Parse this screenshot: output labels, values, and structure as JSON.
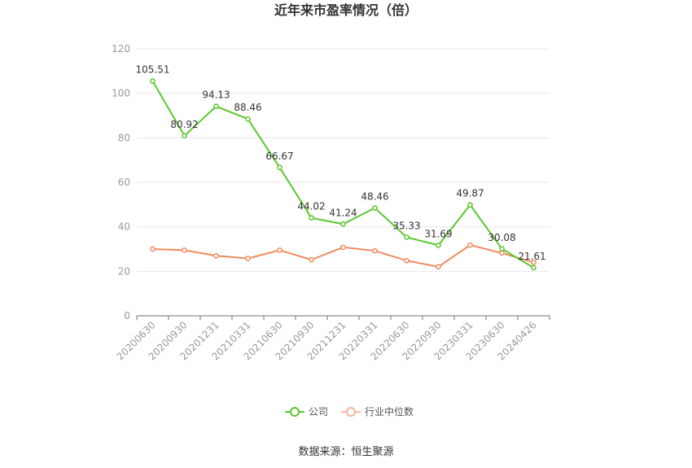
{
  "chart_data": {
    "type": "line",
    "title": "近年来市盈率情况（倍）",
    "categories": [
      "20200630",
      "20200930",
      "20201231",
      "20210331",
      "20210630",
      "20210930",
      "20211231",
      "20220331",
      "20220630",
      "20220930",
      "20230331",
      "20230630",
      "20240426"
    ],
    "ylim": [
      0,
      120
    ],
    "yticks": [
      0,
      20,
      40,
      60,
      80,
      100,
      120
    ],
    "grid": true,
    "legend_position": "bottom",
    "series": [
      {
        "name": "公司",
        "color": "#5ac72e",
        "show_labels": true,
        "values": [
          105.51,
          80.92,
          94.13,
          88.46,
          66.67,
          44.02,
          41.24,
          48.46,
          35.33,
          31.69,
          49.87,
          30.08,
          21.61
        ],
        "labels": [
          "105.51",
          "80.92",
          "94.13",
          "88.46",
          "66.67",
          "44.02",
          "41.24",
          "48.46",
          "35.33",
          "31.69",
          "49.87",
          "30.08",
          "21.61"
        ]
      },
      {
        "name": "行业中位数",
        "color": "#f08a5d",
        "show_labels": false,
        "values": [
          30.0,
          29.5,
          27.0,
          25.8,
          29.5,
          25.2,
          30.8,
          29.2,
          24.8,
          22.0,
          31.8,
          28.2,
          24.0
        ]
      }
    ]
  },
  "source": "数据来源：恒生聚源"
}
